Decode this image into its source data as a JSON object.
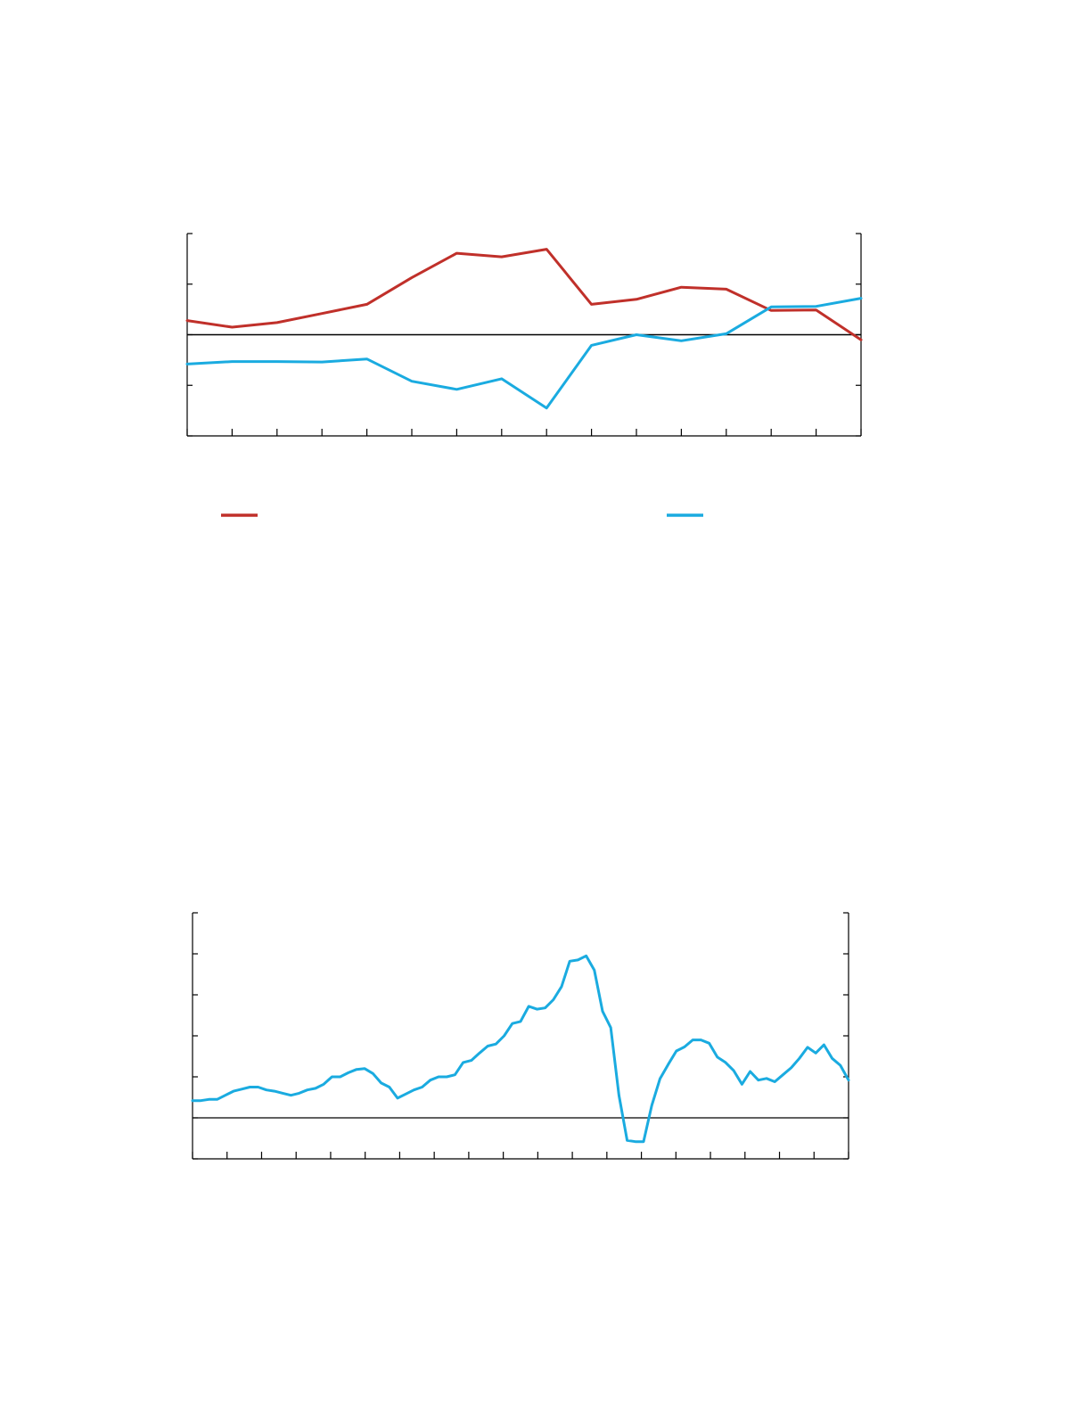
{
  "colors": {
    "red_series": "#c0302a",
    "blue_series": "#1aabe0",
    "axis": "#000000"
  },
  "chart_data": [
    {
      "type": "line",
      "title": "",
      "xlabel": "",
      "ylabel": "",
      "grid": false,
      "legend": "bottom",
      "y_ticks": [
        -2,
        -1,
        0,
        1,
        2
      ],
      "ylim": [
        -2,
        2
      ],
      "x_tick_count": 16,
      "x": [
        0,
        1,
        2,
        3,
        4,
        5,
        6,
        7,
        8,
        9,
        10,
        11,
        12,
        13,
        14,
        15
      ],
      "series": [
        {
          "color": "#c0302a",
          "values": [
            0.28,
            0.15,
            0.24,
            0.42,
            0.6,
            1.13,
            1.61,
            1.54,
            1.69,
            0.6,
            0.7,
            0.94,
            0.9,
            0.48,
            0.49,
            -0.1
          ]
        },
        {
          "color": "#1aabe0",
          "values": [
            -0.58,
            -0.53,
            -0.53,
            -0.54,
            -0.48,
            -0.92,
            -1.08,
            -0.87,
            -1.45,
            -0.21,
            0.0,
            -0.12,
            0.02,
            0.55,
            0.56,
            0.72
          ]
        }
      ]
    },
    {
      "type": "line",
      "title": "",
      "xlabel": "",
      "ylabel": "",
      "grid": false,
      "y_ticks": [
        -1,
        0,
        1,
        2,
        3,
        4,
        5
      ],
      "ylim": [
        -1,
        5
      ],
      "x_tick_count": 20,
      "series": [
        {
          "color": "#1aabe0",
          "values": [
            0.42,
            0.42,
            0.45,
            0.45,
            0.55,
            0.65,
            0.7,
            0.75,
            0.75,
            0.68,
            0.65,
            0.6,
            0.55,
            0.6,
            0.68,
            0.72,
            0.82,
            1.0,
            1.0,
            1.1,
            1.18,
            1.2,
            1.08,
            0.85,
            0.75,
            0.48,
            0.58,
            0.68,
            0.75,
            0.92,
            1.0,
            1.0,
            1.05,
            1.35,
            1.4,
            1.58,
            1.75,
            1.8,
            2.0,
            2.3,
            2.35,
            2.72,
            2.65,
            2.68,
            2.88,
            3.2,
            3.82,
            3.85,
            3.95,
            3.6,
            2.6,
            2.2,
            0.55,
            -0.55,
            -0.58,
            -0.58,
            0.3,
            0.95,
            1.3,
            1.63,
            1.73,
            1.9,
            1.9,
            1.82,
            1.48,
            1.35,
            1.15,
            0.82,
            1.13,
            0.92,
            0.96,
            0.88,
            1.05,
            1.22,
            1.45,
            1.72,
            1.58,
            1.78,
            1.45,
            1.28,
            0.92
          ]
        }
      ]
    }
  ]
}
